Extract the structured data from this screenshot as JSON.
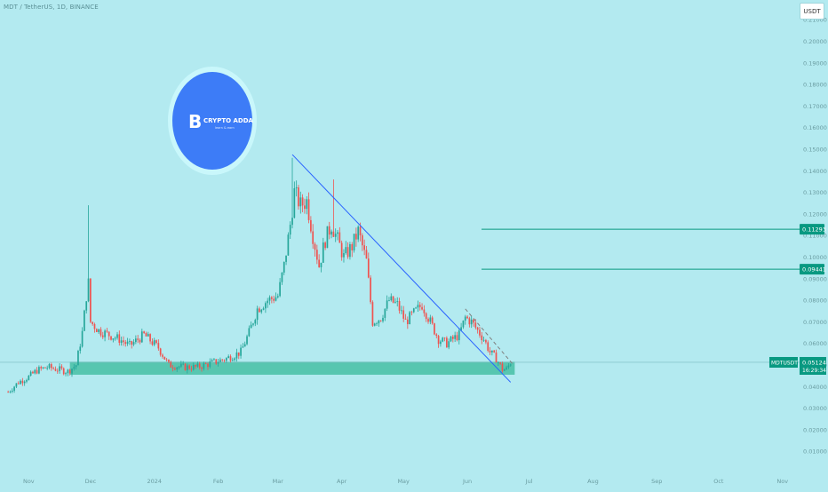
{
  "header": {
    "symbol_title": "MDT / TetherUS, 1D, BINANCE",
    "currency_label": "USDT"
  },
  "logo": {
    "text": "CRYPTO ADDA",
    "tagline": "learn & earn"
  },
  "colors": {
    "background": "#b3eaf0",
    "up_candle": "#26a69a",
    "down_candle": "#ef5350",
    "trendline": "#2962ff",
    "support_zone": "#4cc2a8",
    "target_line": "#089981",
    "axis_text": "#6a9ca1",
    "logo_circle": "#3d7cf7",
    "logo_ring": "#c9f7fb"
  },
  "chart_data": {
    "type": "candlestick",
    "title": "MDT / TetherUS, 1D, BINANCE",
    "ylim": [
      0.0,
      0.22
    ],
    "y_ticks": [
      "0.01000",
      "0.02000",
      "0.03000",
      "0.04000",
      "0.05000",
      "0.06000",
      "0.07000",
      "0.08000",
      "0.09000",
      "0.10000",
      "0.11000",
      "0.12000",
      "0.13000",
      "0.14000",
      "0.15000",
      "0.16000",
      "0.17000",
      "0.18000",
      "0.19000",
      "0.20000",
      "0.21000"
    ],
    "x_ticks": [
      "Nov",
      "Dec",
      "2024",
      "Feb",
      "Mar",
      "Apr",
      "May",
      "Jun",
      "Jul",
      "Aug",
      "Sep",
      "Oct",
      "Nov"
    ],
    "price_path": [
      [
        "2023-10-22",
        0.0375
      ],
      [
        "2023-10-27",
        0.042
      ],
      [
        "2023-11-01",
        0.0445
      ],
      [
        "2023-11-05",
        0.0475
      ],
      [
        "2023-11-10",
        0.049
      ],
      [
        "2023-11-15",
        0.048
      ],
      [
        "2023-11-20",
        0.047
      ],
      [
        "2023-11-24",
        0.05
      ],
      [
        "2023-11-27",
        0.065
      ],
      [
        "2023-11-29",
        0.082
      ],
      [
        "2023-11-30",
        0.088
      ],
      [
        "2023-12-01",
        0.07
      ],
      [
        "2023-12-05",
        0.066
      ],
      [
        "2023-12-10",
        0.064
      ],
      [
        "2023-12-15",
        0.062
      ],
      [
        "2023-12-20",
        0.059
      ],
      [
        "2023-12-27",
        0.064
      ],
      [
        "2024-01-03",
        0.058
      ],
      [
        "2024-01-08",
        0.05
      ],
      [
        "2024-01-15",
        0.049
      ],
      [
        "2024-01-22",
        0.049
      ],
      [
        "2024-01-29",
        0.051
      ],
      [
        "2024-02-05",
        0.053
      ],
      [
        "2024-02-12",
        0.056
      ],
      [
        "2024-02-16",
        0.065
      ],
      [
        "2024-02-20",
        0.076
      ],
      [
        "2024-02-25",
        0.08
      ],
      [
        "2024-03-01",
        0.082
      ],
      [
        "2024-03-04",
        0.096
      ],
      [
        "2024-03-07",
        0.115
      ],
      [
        "2024-03-09",
        0.13
      ],
      [
        "2024-03-12",
        0.124
      ],
      [
        "2024-03-15",
        0.126
      ],
      [
        "2024-03-18",
        0.11
      ],
      [
        "2024-03-21",
        0.096
      ],
      [
        "2024-03-24",
        0.108
      ],
      [
        "2024-03-27",
        0.115
      ],
      [
        "2024-03-30",
        0.108
      ],
      [
        "2024-04-02",
        0.1
      ],
      [
        "2024-04-06",
        0.105
      ],
      [
        "2024-04-09",
        0.112
      ],
      [
        "2024-04-13",
        0.098
      ],
      [
        "2024-04-16",
        0.07
      ],
      [
        "2024-04-20",
        0.072
      ],
      [
        "2024-04-24",
        0.08
      ],
      [
        "2024-04-28",
        0.078
      ],
      [
        "2024-05-02",
        0.07
      ],
      [
        "2024-05-06",
        0.074
      ],
      [
        "2024-05-10",
        0.078
      ],
      [
        "2024-05-14",
        0.07
      ],
      [
        "2024-05-18",
        0.062
      ],
      [
        "2024-05-22",
        0.06
      ],
      [
        "2024-05-25",
        0.062
      ],
      [
        "2024-05-28",
        0.064
      ],
      [
        "2024-05-31",
        0.072
      ],
      [
        "2024-06-03",
        0.07
      ],
      [
        "2024-06-06",
        0.066
      ],
      [
        "2024-06-09",
        0.062
      ],
      [
        "2024-06-12",
        0.056
      ],
      [
        "2024-06-15",
        0.053
      ],
      [
        "2024-06-18",
        0.048
      ],
      [
        "2024-06-20",
        0.048
      ],
      [
        "2024-06-22",
        0.05124
      ]
    ],
    "wick_spikes": [
      [
        "2023-11-30",
        0.124
      ],
      [
        "2024-03-08",
        0.146
      ],
      [
        "2024-03-16",
        0.13
      ],
      [
        "2024-03-28",
        0.136
      ]
    ],
    "last_price": {
      "symbol": "MDTUSDT",
      "value": "0.05124",
      "countdown": "16:29:34",
      "y": 0.05124
    },
    "targets": [
      {
        "label": "0.11293",
        "value": 0.11293
      },
      {
        "label": "0.09441",
        "value": 0.09441
      }
    ],
    "support_zone": {
      "from": 0.0455,
      "to": 0.0515
    },
    "trendline": {
      "start": [
        "2024-03-08",
        0.1475
      ],
      "end": [
        "2024-06-22",
        0.042
      ]
    },
    "dashed_trendline": {
      "start": [
        "2024-05-31",
        0.076
      ],
      "end": [
        "2024-06-23",
        0.0505
      ]
    },
    "grid": false,
    "legend": "none"
  }
}
